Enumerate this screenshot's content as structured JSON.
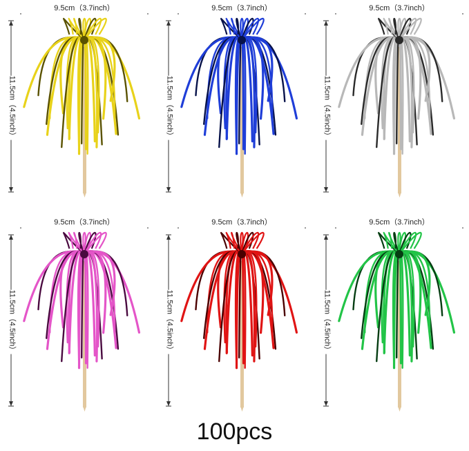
{
  "items": [
    {
      "color": "#e8d21a",
      "dark": "#5a5200",
      "icon": "yellow-pick-icon",
      "width_label": "9.5cm（3.7inch）",
      "height_label": "11.5cm（4.5inch）"
    },
    {
      "color": "#1f3ed8",
      "dark": "#07124a",
      "icon": "blue-pick-icon",
      "width_label": "9.5cm（3.7inch）",
      "height_label": "11.5cm（4.5inch）"
    },
    {
      "color": "#b8b8b8",
      "dark": "#2a2a2a",
      "icon": "silver-pick-icon",
      "width_label": "9.5cm（3.7inch）",
      "height_label": "11.5cm（4.5inch）"
    },
    {
      "color": "#e455c8",
      "dark": "#4a0a40",
      "icon": "pink-pick-icon",
      "width_label": "9.5cm（3.7inch）",
      "height_label": "11.5cm（4.5inch）"
    },
    {
      "color": "#e01414",
      "dark": "#4a0000",
      "icon": "red-pick-icon",
      "width_label": "9.5cm（3.7inch）",
      "height_label": "11.5cm（4.5inch）"
    },
    {
      "color": "#22c447",
      "dark": "#053d12",
      "icon": "green-pick-icon",
      "width_label": "9.5cm（3.7inch）",
      "height_label": "11.5cm（4.5inch）"
    }
  ],
  "caption": "100pcs"
}
